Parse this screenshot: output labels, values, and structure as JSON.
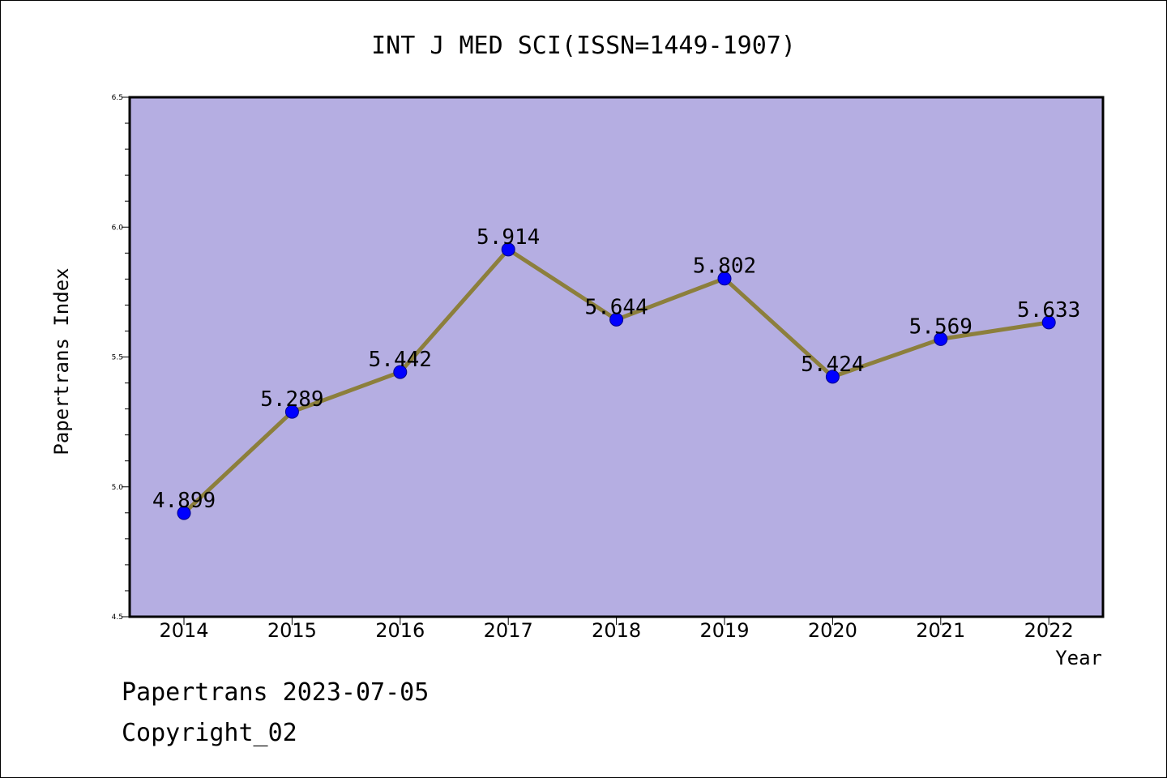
{
  "chart_data": {
    "type": "line",
    "title": "INT J MED SCI(ISSN=1449-1907)",
    "xlabel": "Year",
    "ylabel": "Papertrans Index",
    "x": [
      "2014",
      "2015",
      "2016",
      "2017",
      "2018",
      "2019",
      "2020",
      "2021",
      "2022"
    ],
    "values": [
      4.899,
      5.289,
      5.442,
      5.914,
      5.644,
      5.802,
      5.424,
      5.569,
      5.633
    ],
    "data_labels": [
      "4.899",
      "5.289",
      "5.442",
      "5.914",
      "5.644",
      "5.802",
      "5.424",
      "5.569",
      "5.633"
    ],
    "ylim": [
      4.5,
      6.5
    ],
    "yticks": [
      "4.5",
      "5.0",
      "5.5",
      "6.0",
      "6.5"
    ],
    "grid": false,
    "colors": {
      "plot_background": "#b5aee2",
      "line": "#8c7f3c",
      "marker": "#0000ff"
    }
  },
  "footer": {
    "source": "Papertrans 2023-07-05",
    "copyright": "Copyright_02"
  }
}
